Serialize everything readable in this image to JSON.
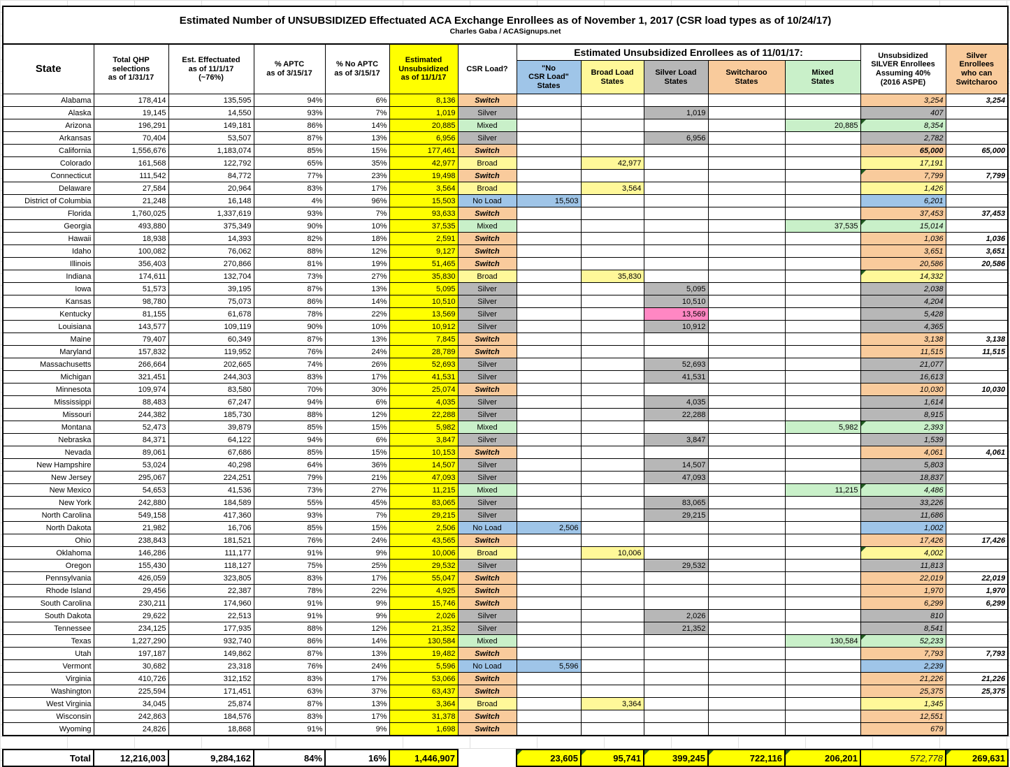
{
  "header": {
    "title": "Estimated Number of UNSUBSIDIZED Effectuated ACA Exchange Enrollees as of November 1, 2017 (CSR load types as of 10/24/17)",
    "subtitle": "Charles Gaba / ACASignups.net",
    "group_header": "Estimated Unsubsidized Enrollees as of 11/01/17:"
  },
  "columns": {
    "state": "State",
    "qhp": "Total QHP\nselections\nas of 1/31/17",
    "eff": "Est. Effectuated\nas of 11/1/17\n(~76%)",
    "aptc": "% APTC\nas of 3/15/17",
    "noaptc": "% No APTC\nas of 3/15/17",
    "unsub": "Estimated\nUnsubsidized\nas of 11/1/17",
    "load": "CSR Load?",
    "noload": "\"No\nCSR Load\"\nStates",
    "broad": "Broad Load\nStates",
    "silver": "Silver Load\nStates",
    "switcharoo": "Switcharoo\nStates",
    "mixed": "Mixed\nStates",
    "unsub_silver": "Unsubsidized\nSILVER Enrollees\nAssuming 40%\n(2016 ASPE)",
    "can_switch": "Silver\nEnrollees\nwho can\nSwitcharoo"
  },
  "colors": {
    "yellow": "#FFFF00",
    "switcharoo_peach": "#F9CB9C",
    "silver_gray": "#B7B7B7",
    "mixed_green": "#C9F0C9",
    "broad_yellow": "#FFF899",
    "noload_blue": "#9FC5E8",
    "kentucky_pink": "#FF87C3",
    "note_triangle_green": "#225B22"
  },
  "rows": [
    {
      "s": "Alabama",
      "q": "178,414",
      "e": "135,595",
      "a": "94%",
      "n": "6%",
      "u": "8,136",
      "l": "Switch",
      "t": "switch",
      "c": "8,136",
      "us": "3,254",
      "cs": "3,254"
    },
    {
      "s": "Alaska",
      "q": "19,145",
      "e": "14,550",
      "a": "93%",
      "n": "7%",
      "u": "1,019",
      "l": "Silver",
      "t": "silver",
      "c": "1,019",
      "us": "407",
      "cs": ""
    },
    {
      "s": "Arizona",
      "q": "196,291",
      "e": "149,181",
      "a": "86%",
      "n": "14%",
      "u": "20,885",
      "l": "Mixed",
      "t": "mixed",
      "c": "20,885",
      "us": "8,354",
      "cs": "",
      "m": true
    },
    {
      "s": "Arkansas",
      "q": "70,404",
      "e": "53,507",
      "a": "87%",
      "n": "13%",
      "u": "6,956",
      "l": "Silver",
      "t": "silver",
      "c": "6,956",
      "us": "2,782",
      "cs": ""
    },
    {
      "s": "California",
      "q": "1,556,676",
      "e": "1,183,074",
      "a": "85%",
      "n": "15%",
      "u": "177,461",
      "l": "Switch",
      "t": "switch",
      "c": "177,461",
      "us": "65,000",
      "cs": "65,000",
      "b": true
    },
    {
      "s": "Colorado",
      "q": "161,568",
      "e": "122,792",
      "a": "65%",
      "n": "35%",
      "u": "42,977",
      "l": "Broad",
      "t": "broad",
      "c": "42,977",
      "us": "17,191",
      "cs": ""
    },
    {
      "s": "Connecticut",
      "q": "111,542",
      "e": "84,772",
      "a": "77%",
      "n": "23%",
      "u": "19,498",
      "l": "Switch",
      "t": "switch",
      "c": "19,498",
      "us": "7,799",
      "cs": "7,799",
      "m": true
    },
    {
      "s": "Delaware",
      "q": "27,584",
      "e": "20,964",
      "a": "83%",
      "n": "17%",
      "u": "3,564",
      "l": "Broad",
      "t": "broad",
      "c": "3,564",
      "us": "1,426",
      "cs": ""
    },
    {
      "s": "District of Columbia",
      "q": "21,248",
      "e": "16,148",
      "a": "4%",
      "n": "96%",
      "u": "15,503",
      "l": "No Load",
      "t": "noload",
      "c": "15,503",
      "us": "6,201",
      "cs": ""
    },
    {
      "s": "Florida",
      "q": "1,760,025",
      "e": "1,337,619",
      "a": "93%",
      "n": "7%",
      "u": "93,633",
      "l": "Switch",
      "t": "switch",
      "c": "93,633",
      "us": "37,453",
      "cs": "37,453"
    },
    {
      "s": "Georgia",
      "q": "493,880",
      "e": "375,349",
      "a": "90%",
      "n": "10%",
      "u": "37,535",
      "l": "Mixed",
      "t": "mixed",
      "c": "37,535",
      "us": "15,014",
      "cs": "",
      "m": true
    },
    {
      "s": "Hawaii",
      "q": "18,938",
      "e": "14,393",
      "a": "82%",
      "n": "18%",
      "u": "2,591",
      "l": "Switch",
      "t": "switch",
      "c": "2,591",
      "us": "1,036",
      "cs": "1,036"
    },
    {
      "s": "Idaho",
      "q": "100,082",
      "e": "76,062",
      "a": "88%",
      "n": "12%",
      "u": "9,127",
      "l": "Switch",
      "t": "switch",
      "c": "9,127",
      "us": "3,651",
      "cs": "3,651"
    },
    {
      "s": "Illinois",
      "q": "356,403",
      "e": "270,866",
      "a": "81%",
      "n": "19%",
      "u": "51,465",
      "l": "Switch",
      "t": "switch",
      "c": "51,465",
      "us": "20,586",
      "cs": "20,586"
    },
    {
      "s": "Indiana",
      "q": "174,611",
      "e": "132,704",
      "a": "73%",
      "n": "27%",
      "u": "35,830",
      "l": "Broad",
      "t": "broad",
      "c": "35,830",
      "us": "14,332",
      "cs": "",
      "m": true
    },
    {
      "s": "Iowa",
      "q": "51,573",
      "e": "39,195",
      "a": "87%",
      "n": "13%",
      "u": "5,095",
      "l": "Silver",
      "t": "silver",
      "c": "5,095",
      "us": "2,038",
      "cs": ""
    },
    {
      "s": "Kansas",
      "q": "98,780",
      "e": "75,073",
      "a": "86%",
      "n": "14%",
      "u": "10,510",
      "l": "Silver",
      "t": "silver",
      "c": "10,510",
      "us": "4,204",
      "cs": ""
    },
    {
      "s": "Kentucky",
      "q": "81,155",
      "e": "61,678",
      "a": "78%",
      "n": "22%",
      "u": "13,569",
      "l": "Silver",
      "t": "silver",
      "c": "13,569",
      "us": "5,428",
      "cs": "",
      "p": true
    },
    {
      "s": "Louisiana",
      "q": "143,577",
      "e": "109,119",
      "a": "90%",
      "n": "10%",
      "u": "10,912",
      "l": "Silver",
      "t": "silver",
      "c": "10,912",
      "us": "4,365",
      "cs": ""
    },
    {
      "s": "Maine",
      "q": "79,407",
      "e": "60,349",
      "a": "87%",
      "n": "13%",
      "u": "7,845",
      "l": "Switch",
      "t": "switch",
      "c": "7,845",
      "us": "3,138",
      "cs": "3,138"
    },
    {
      "s": "Maryland",
      "q": "157,832",
      "e": "119,952",
      "a": "76%",
      "n": "24%",
      "u": "28,789",
      "l": "Switch",
      "t": "switch",
      "c": "28,789",
      "us": "11,515",
      "cs": "11,515"
    },
    {
      "s": "Massachusetts",
      "q": "266,664",
      "e": "202,665",
      "a": "74%",
      "n": "26%",
      "u": "52,693",
      "l": "Silver",
      "t": "silver",
      "c": "52,693",
      "us": "21,077",
      "cs": ""
    },
    {
      "s": "Michigan",
      "q": "321,451",
      "e": "244,303",
      "a": "83%",
      "n": "17%",
      "u": "41,531",
      "l": "Silver",
      "t": "silver",
      "c": "41,531",
      "us": "16,613",
      "cs": ""
    },
    {
      "s": "Minnesota",
      "q": "109,974",
      "e": "83,580",
      "a": "70%",
      "n": "30%",
      "u": "25,074",
      "l": "Switch",
      "t": "switch",
      "c": "25,074",
      "us": "10,030",
      "cs": "10,030"
    },
    {
      "s": "Mississippi",
      "q": "88,483",
      "e": "67,247",
      "a": "94%",
      "n": "6%",
      "u": "4,035",
      "l": "Silver",
      "t": "silver",
      "c": "4,035",
      "us": "1,614",
      "cs": ""
    },
    {
      "s": "Missouri",
      "q": "244,382",
      "e": "185,730",
      "a": "88%",
      "n": "12%",
      "u": "22,288",
      "l": "Silver",
      "t": "silver",
      "c": "22,288",
      "us": "8,915",
      "cs": ""
    },
    {
      "s": "Montana",
      "q": "52,473",
      "e": "39,879",
      "a": "85%",
      "n": "15%",
      "u": "5,982",
      "l": "Mixed",
      "t": "mixed",
      "c": "5,982",
      "us": "2,393",
      "cs": "",
      "m": true
    },
    {
      "s": "Nebraska",
      "q": "84,371",
      "e": "64,122",
      "a": "94%",
      "n": "6%",
      "u": "3,847",
      "l": "Silver",
      "t": "silver",
      "c": "3,847",
      "us": "1,539",
      "cs": ""
    },
    {
      "s": "Nevada",
      "q": "89,061",
      "e": "67,686",
      "a": "85%",
      "n": "15%",
      "u": "10,153",
      "l": "Switch",
      "t": "switch",
      "c": "10,153",
      "us": "4,061",
      "cs": "4,061"
    },
    {
      "s": "New Hampshire",
      "q": "53,024",
      "e": "40,298",
      "a": "64%",
      "n": "36%",
      "u": "14,507",
      "l": "Silver",
      "t": "silver",
      "c": "14,507",
      "us": "5,803",
      "cs": ""
    },
    {
      "s": "New Jersey",
      "q": "295,067",
      "e": "224,251",
      "a": "79%",
      "n": "21%",
      "u": "47,093",
      "l": "Silver",
      "t": "silver",
      "c": "47,093",
      "us": "18,837",
      "cs": ""
    },
    {
      "s": "New Mexico",
      "q": "54,653",
      "e": "41,536",
      "a": "73%",
      "n": "27%",
      "u": "11,215",
      "l": "Mixed",
      "t": "mixed",
      "c": "11,215",
      "us": "4,486",
      "cs": "",
      "m": true
    },
    {
      "s": "New York",
      "q": "242,880",
      "e": "184,589",
      "a": "55%",
      "n": "45%",
      "u": "83,065",
      "l": "Silver",
      "t": "silver",
      "c": "83,065",
      "us": "33,226",
      "cs": ""
    },
    {
      "s": "North Carolina",
      "q": "549,158",
      "e": "417,360",
      "a": "93%",
      "n": "7%",
      "u": "29,215",
      "l": "Silver",
      "t": "silver",
      "c": "29,215",
      "us": "11,686",
      "cs": ""
    },
    {
      "s": "North Dakota",
      "q": "21,982",
      "e": "16,706",
      "a": "85%",
      "n": "15%",
      "u": "2,506",
      "l": "No Load",
      "t": "noload",
      "c": "2,506",
      "us": "1,002",
      "cs": ""
    },
    {
      "s": "Ohio",
      "q": "238,843",
      "e": "181,521",
      "a": "76%",
      "n": "24%",
      "u": "43,565",
      "l": "Switch",
      "t": "switch",
      "c": "43,565",
      "us": "17,426",
      "cs": "17,426"
    },
    {
      "s": "Oklahoma",
      "q": "146,286",
      "e": "111,177",
      "a": "91%",
      "n": "9%",
      "u": "10,006",
      "l": "Broad",
      "t": "broad",
      "c": "10,006",
      "us": "4,002",
      "cs": "",
      "m": true
    },
    {
      "s": "Oregon",
      "q": "155,430",
      "e": "118,127",
      "a": "75%",
      "n": "25%",
      "u": "29,532",
      "l": "Silver",
      "t": "silver",
      "c": "29,532",
      "us": "11,813",
      "cs": ""
    },
    {
      "s": "Pennsylvania",
      "q": "426,059",
      "e": "323,805",
      "a": "83%",
      "n": "17%",
      "u": "55,047",
      "l": "Switch",
      "t": "switch",
      "c": "55,047",
      "us": "22,019",
      "cs": "22,019"
    },
    {
      "s": "Rhode Island",
      "q": "29,456",
      "e": "22,387",
      "a": "78%",
      "n": "22%",
      "u": "4,925",
      "l": "Switch",
      "t": "switch",
      "c": "4,925",
      "us": "1,970",
      "cs": "1,970"
    },
    {
      "s": "South Carolina",
      "q": "230,211",
      "e": "174,960",
      "a": "91%",
      "n": "9%",
      "u": "15,746",
      "l": "Switch",
      "t": "switch",
      "c": "15,746",
      "us": "6,299",
      "cs": "6,299"
    },
    {
      "s": "South Dakota",
      "q": "29,622",
      "e": "22,513",
      "a": "91%",
      "n": "9%",
      "u": "2,026",
      "l": "Silver",
      "t": "silver",
      "c": "2,026",
      "us": "810",
      "cs": ""
    },
    {
      "s": "Tennessee",
      "q": "234,125",
      "e": "177,935",
      "a": "88%",
      "n": "12%",
      "u": "21,352",
      "l": "Silver",
      "t": "silver",
      "c": "21,352",
      "us": "8,541",
      "cs": ""
    },
    {
      "s": "Texas",
      "q": "1,227,290",
      "e": "932,740",
      "a": "86%",
      "n": "14%",
      "u": "130,584",
      "l": "Mixed",
      "t": "mixed",
      "c": "130,584",
      "us": "52,233",
      "cs": "",
      "m": true
    },
    {
      "s": "Utah",
      "q": "197,187",
      "e": "149,862",
      "a": "87%",
      "n": "13%",
      "u": "19,482",
      "l": "Switch",
      "t": "switch",
      "c": "19,482",
      "us": "7,793",
      "cs": "7,793"
    },
    {
      "s": "Vermont",
      "q": "30,682",
      "e": "23,318",
      "a": "76%",
      "n": "24%",
      "u": "5,596",
      "l": "No Load",
      "t": "noload",
      "c": "5,596",
      "us": "2,239",
      "cs": ""
    },
    {
      "s": "Virginia",
      "q": "410,726",
      "e": "312,152",
      "a": "83%",
      "n": "17%",
      "u": "53,066",
      "l": "Switch",
      "t": "switch",
      "c": "53,066",
      "us": "21,226",
      "cs": "21,226"
    },
    {
      "s": "Washington",
      "q": "225,594",
      "e": "171,451",
      "a": "63%",
      "n": "37%",
      "u": "63,437",
      "l": "Switch",
      "t": "switch",
      "c": "63,437",
      "us": "25,375",
      "cs": "25,375"
    },
    {
      "s": "West Virginia",
      "q": "34,045",
      "e": "25,874",
      "a": "87%",
      "n": "13%",
      "u": "3,364",
      "l": "Broad",
      "t": "broad",
      "c": "3,364",
      "us": "1,345",
      "cs": ""
    },
    {
      "s": "Wisconsin",
      "q": "242,863",
      "e": "184,576",
      "a": "83%",
      "n": "17%",
      "u": "31,378",
      "l": "Switch",
      "t": "switch",
      "c": "31,378",
      "us": "12,551",
      "cs": ""
    },
    {
      "s": "Wyoming",
      "q": "24,826",
      "e": "18,868",
      "a": "91%",
      "n": "9%",
      "u": "1,698",
      "l": "Switch",
      "t": "switch",
      "c": "1,698",
      "us": "679",
      "cs": ""
    }
  ],
  "total": {
    "label": "Total",
    "qhp": "12,216,003",
    "eff": "9,284,162",
    "aptc": "84%",
    "noaptc": "16%",
    "unsub": "1,446,907",
    "noload": "23,605",
    "broad": "95,741",
    "silver": "399,245",
    "switcharoo": "722,116",
    "mixed": "206,201",
    "unsub_silver": "572,778",
    "can_switch": "269,631"
  }
}
